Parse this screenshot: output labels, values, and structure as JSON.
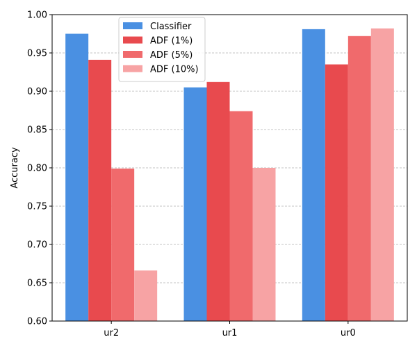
{
  "chart_data": {
    "type": "bar",
    "title": "",
    "xlabel": "",
    "ylabel": "Accuracy",
    "categories": [
      "ur2",
      "ur1",
      "ur0"
    ],
    "ylim": [
      0.6,
      1.0
    ],
    "yticks": [
      "0.60",
      "0.65",
      "0.70",
      "0.75",
      "0.80",
      "0.85",
      "0.90",
      "0.95",
      "1.00"
    ],
    "grid": "horizontal dashed",
    "legend_position": "upper-left",
    "series": [
      {
        "name": "Classifier",
        "color": "#4a90e2",
        "values": [
          0.975,
          0.905,
          0.981
        ]
      },
      {
        "name": "ADF (1%)",
        "color": "#e84a4e",
        "values": [
          0.941,
          0.912,
          0.935
        ]
      },
      {
        "name": "ADF (5%)",
        "color": "#f06a6c",
        "values": [
          0.799,
          0.874,
          0.972
        ]
      },
      {
        "name": "ADF (10%)",
        "color": "#f7a3a4",
        "values": [
          0.666,
          0.8,
          0.982
        ]
      }
    ]
  }
}
